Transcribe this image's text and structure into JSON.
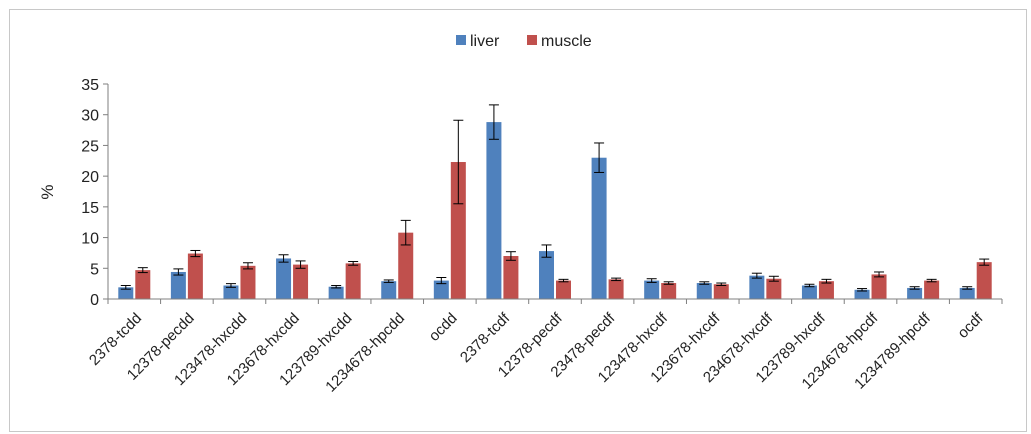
{
  "chart_data": {
    "type": "bar",
    "title": "",
    "xlabel": "",
    "ylabel": "%",
    "ylim": [
      0,
      35
    ],
    "yticks": [
      0,
      5,
      10,
      15,
      20,
      25,
      30,
      35
    ],
    "grid": false,
    "legend_position": "top-center",
    "categories": [
      "2378-tcdd",
      "12378-pecdd",
      "123478-hxcdd",
      "123678-hxcdd",
      "123789-hxcdd",
      "1234678-hpcdd",
      "ocdd",
      "2378-tcdf",
      "12378-pecdf",
      "23478-pecdf",
      "123478-hxcdf",
      "123678-hxcdf",
      "234678-hxcdf",
      "123789-hxcdf",
      "1234678-hpcdf",
      "1234789-hpcdf",
      "ocdf"
    ],
    "series": [
      {
        "name": "liver",
        "color": "#4f81bd",
        "values": [
          1.9,
          4.4,
          2.2,
          6.6,
          2.0,
          2.9,
          3.0,
          28.8,
          7.8,
          23.0,
          3.0,
          2.6,
          3.8,
          2.2,
          1.5,
          1.8,
          1.8
        ],
        "errors": [
          0.3,
          0.5,
          0.3,
          0.6,
          0.2,
          0.2,
          0.5,
          2.8,
          1.0,
          2.4,
          0.3,
          0.2,
          0.4,
          0.2,
          0.2,
          0.2,
          0.2
        ]
      },
      {
        "name": "muscle",
        "color": "#c0504d",
        "values": [
          4.7,
          7.4,
          5.4,
          5.6,
          5.8,
          10.8,
          22.3,
          7.0,
          3.0,
          3.2,
          2.6,
          2.4,
          3.3,
          2.9,
          4.0,
          3.0,
          6.0
        ],
        "errors": [
          0.4,
          0.5,
          0.5,
          0.6,
          0.3,
          2.0,
          6.8,
          0.7,
          0.2,
          0.2,
          0.2,
          0.2,
          0.4,
          0.3,
          0.4,
          0.2,
          0.5
        ]
      }
    ]
  }
}
